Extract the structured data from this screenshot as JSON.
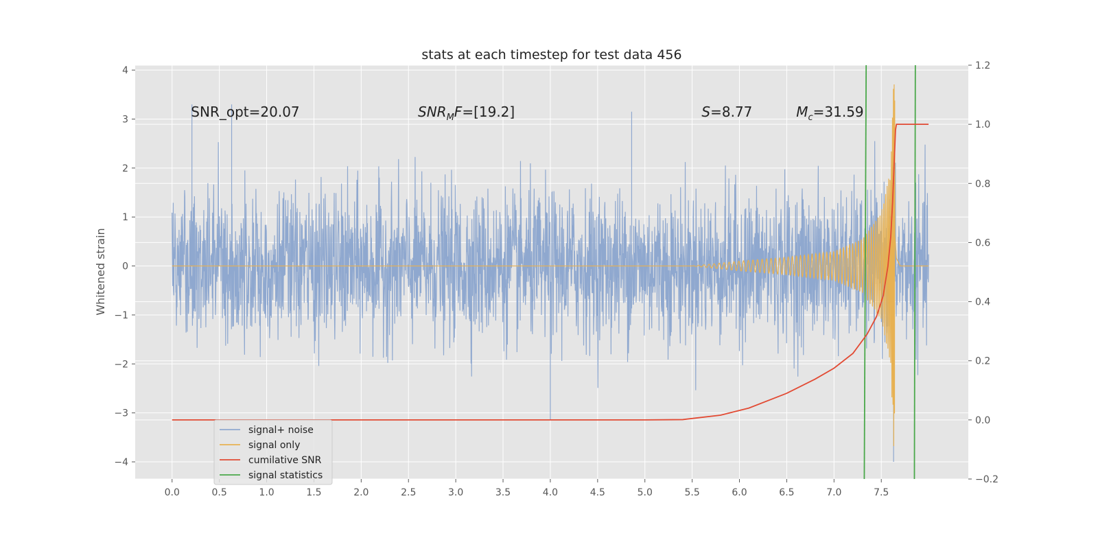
{
  "chart_data": {
    "type": "line",
    "title": "stats at each timestep for test data 456",
    "ylabel": "Whitened strain",
    "xlabel": "",
    "xlim": [
      -0.39,
      8.42
    ],
    "ylim": [
      -4.35,
      4.1
    ],
    "ylim_right": [
      -0.2,
      1.2
    ],
    "x_ticks": [
      "0.0",
      "0.5",
      "1.0",
      "1.5",
      "2.0",
      "2.5",
      "3.0",
      "3.5",
      "4.0",
      "4.5",
      "5.0",
      "5.5",
      "6.0",
      "6.5",
      "7.0",
      "7.5"
    ],
    "y_ticks": [
      "−4",
      "−3",
      "−2",
      "−1",
      "0",
      "1",
      "2",
      "3",
      "4"
    ],
    "y_ticks_right": [
      "−0.2",
      "0.0",
      "0.2",
      "0.4",
      "0.6",
      "0.8",
      "1.0",
      "1.2"
    ],
    "grid": true,
    "background": "#e5e5e5",
    "legend_position": "lower-left",
    "annotations": [
      {
        "text": "SNR_opt=20.07",
        "x": 0.2,
        "y": 3.05
      },
      {
        "text": "SNR_MF=[19.2]",
        "x": 2.6,
        "y": 3.05
      },
      {
        "text": "S=8.77",
        "x": 5.6,
        "y": 3.05
      },
      {
        "text": "M_c=31.59",
        "x": 6.6,
        "y": 3.05
      }
    ],
    "series": [
      {
        "name": "signal+ noise",
        "color": "#8fa8cf",
        "t_range": [
          0.0,
          8.0
        ],
        "amplitude_envelope": [
          -4.0,
          3.75
        ],
        "notable_spikes": [
          [
            0.21,
            3.3
          ],
          [
            0.63,
            3.3
          ],
          [
            4.0,
            -3.15
          ],
          [
            4.86,
            3.15
          ],
          [
            7.63,
            -4.0
          ]
        ]
      },
      {
        "name": "signal only",
        "color": "#e7b152",
        "x": [
          0.0,
          5.5,
          6.0,
          6.5,
          7.0,
          7.3,
          7.5,
          7.6,
          7.63,
          7.64,
          7.66,
          7.7,
          8.0
        ],
        "envelope": [
          0.0,
          0.0,
          0.1,
          0.18,
          0.3,
          0.55,
          1.1,
          2.0,
          3.75,
          3.7,
          0.8,
          0.0,
          0.0
        ]
      },
      {
        "name": "cumilative SNR",
        "color": "#e24a33",
        "axis": "right",
        "x": [
          0.0,
          5.0,
          5.4,
          5.8,
          6.1,
          6.5,
          6.8,
          7.0,
          7.2,
          7.35,
          7.45,
          7.52,
          7.57,
          7.6,
          7.62,
          7.64,
          7.65,
          7.66,
          8.0
        ],
        "y": [
          0.0,
          0.0,
          0.001,
          0.016,
          0.04,
          0.09,
          0.138,
          0.175,
          0.225,
          0.29,
          0.35,
          0.42,
          0.52,
          0.62,
          0.74,
          0.9,
          0.98,
          1.0,
          1.0
        ]
      },
      {
        "name": "signal statistics",
        "color": "#348abd",
        "line_color": "#4aa84a",
        "vlines": [
          [
            7.32,
            7.34
          ],
          [
            7.85,
            7.86
          ]
        ]
      }
    ]
  }
}
